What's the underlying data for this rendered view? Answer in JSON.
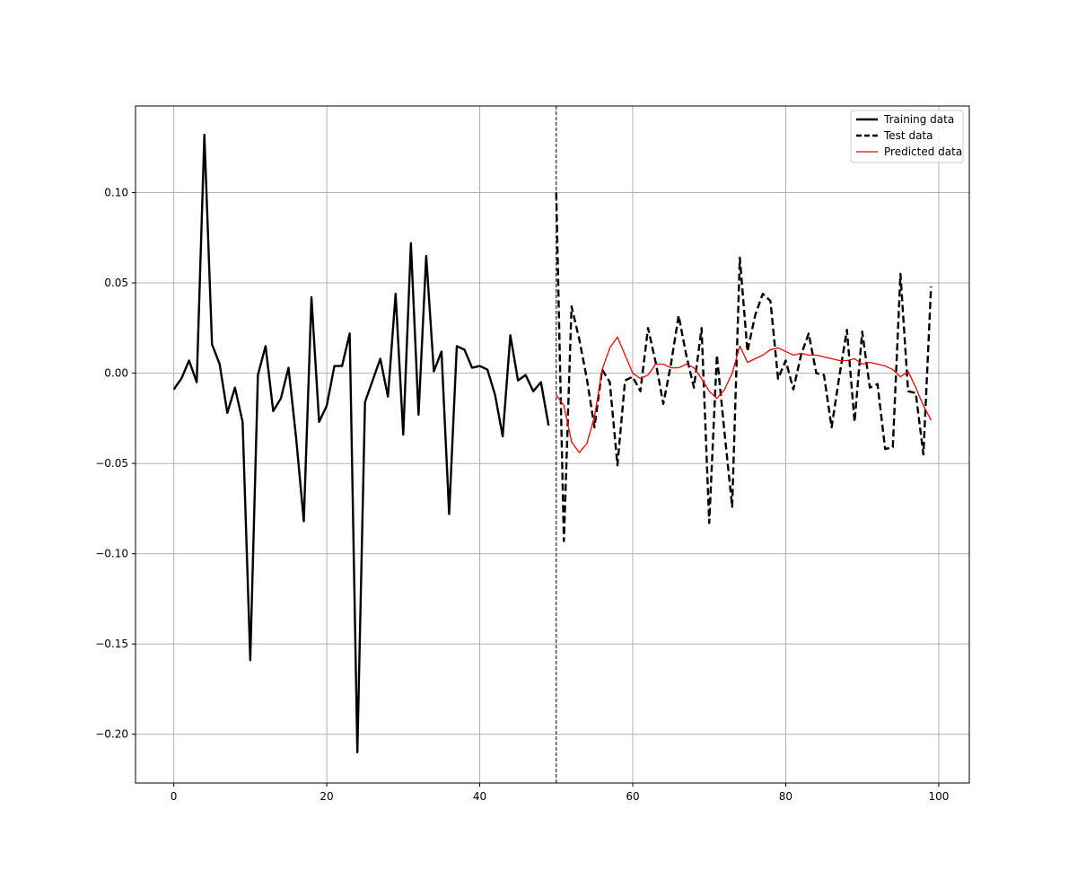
{
  "chart_data": {
    "type": "line",
    "title": "",
    "xlabel": "",
    "ylabel": "",
    "xlim": [
      -5,
      104
    ],
    "ylim": [
      -0.227,
      0.148
    ],
    "grid": true,
    "legend_position": "top-right",
    "x_ticks": [
      {
        "value": 0,
        "label": "0"
      },
      {
        "value": 20,
        "label": "20"
      },
      {
        "value": 40,
        "label": "40"
      },
      {
        "value": 60,
        "label": "60"
      },
      {
        "value": 80,
        "label": "80"
      },
      {
        "value": 100,
        "label": "100"
      }
    ],
    "y_ticks": [
      {
        "value": -0.2,
        "label": "−0.20"
      },
      {
        "value": -0.15,
        "label": "−0.15"
      },
      {
        "value": -0.1,
        "label": "−0.10"
      },
      {
        "value": -0.05,
        "label": "−0.05"
      },
      {
        "value": 0.0,
        "label": "0.00"
      },
      {
        "value": 0.05,
        "label": "0.05"
      },
      {
        "value": 0.1,
        "label": "0.10"
      }
    ],
    "vline": {
      "x": 50,
      "color": "#000000",
      "style": "dashed"
    },
    "series": [
      {
        "name": "Training data",
        "color": "#000000",
        "style": "solid",
        "x_start": 0,
        "values": [
          -0.009,
          -0.003,
          0.007,
          -0.005,
          0.132,
          0.016,
          0.005,
          -0.022,
          -0.008,
          -0.027,
          -0.159,
          -0.001,
          0.015,
          -0.021,
          -0.014,
          0.003,
          -0.036,
          -0.082,
          0.042,
          -0.027,
          -0.018,
          0.004,
          0.004,
          0.022,
          -0.21,
          -0.016,
          -0.004,
          0.008,
          -0.013,
          0.044,
          -0.034,
          0.072,
          -0.023,
          0.065,
          0.001,
          0.012,
          -0.078,
          0.015,
          0.013,
          0.003,
          0.004,
          0.002,
          -0.012,
          -0.035,
          0.021,
          -0.004,
          -0.001,
          -0.01,
          -0.005,
          -0.029
        ]
      },
      {
        "name": "Test data",
        "color": "#000000",
        "style": "dashed",
        "x_start": 50,
        "values": [
          0.1,
          -0.093,
          0.037,
          0.019,
          -0.003,
          -0.03,
          0.002,
          -0.005,
          -0.051,
          -0.004,
          -0.002,
          -0.01,
          0.025,
          0.006,
          -0.017,
          0.005,
          0.032,
          0.01,
          -0.008,
          0.025,
          -0.083,
          0.01,
          -0.033,
          -0.074,
          0.064,
          0.012,
          0.032,
          0.044,
          0.04,
          -0.003,
          0.007,
          -0.009,
          0.01,
          0.022,
          0.0,
          -0.001,
          -0.03,
          -0.002,
          0.024,
          -0.027,
          0.023,
          -0.008,
          -0.006,
          -0.042,
          -0.041,
          0.055,
          -0.01,
          -0.011,
          -0.045,
          0.048
        ]
      },
      {
        "name": "Predicted data",
        "color": "#ff0000",
        "style": "solid",
        "x_start": 50,
        "values": [
          -0.012,
          -0.018,
          -0.038,
          -0.044,
          -0.039,
          -0.024,
          0.002,
          0.014,
          0.02,
          0.01,
          0.0,
          -0.003,
          -0.001,
          0.005,
          0.005,
          0.003,
          0.003,
          0.005,
          0.003,
          -0.003,
          -0.01,
          -0.014,
          -0.009,
          0.0,
          0.015,
          0.006,
          0.008,
          0.01,
          0.013,
          0.014,
          0.012,
          0.01,
          0.011,
          0.01,
          0.01,
          0.009,
          0.008,
          0.007,
          0.007,
          0.008,
          0.005,
          0.006,
          0.005,
          0.004,
          0.002,
          -0.002,
          0.001,
          -0.008,
          -0.018,
          -0.026
        ]
      }
    ]
  }
}
